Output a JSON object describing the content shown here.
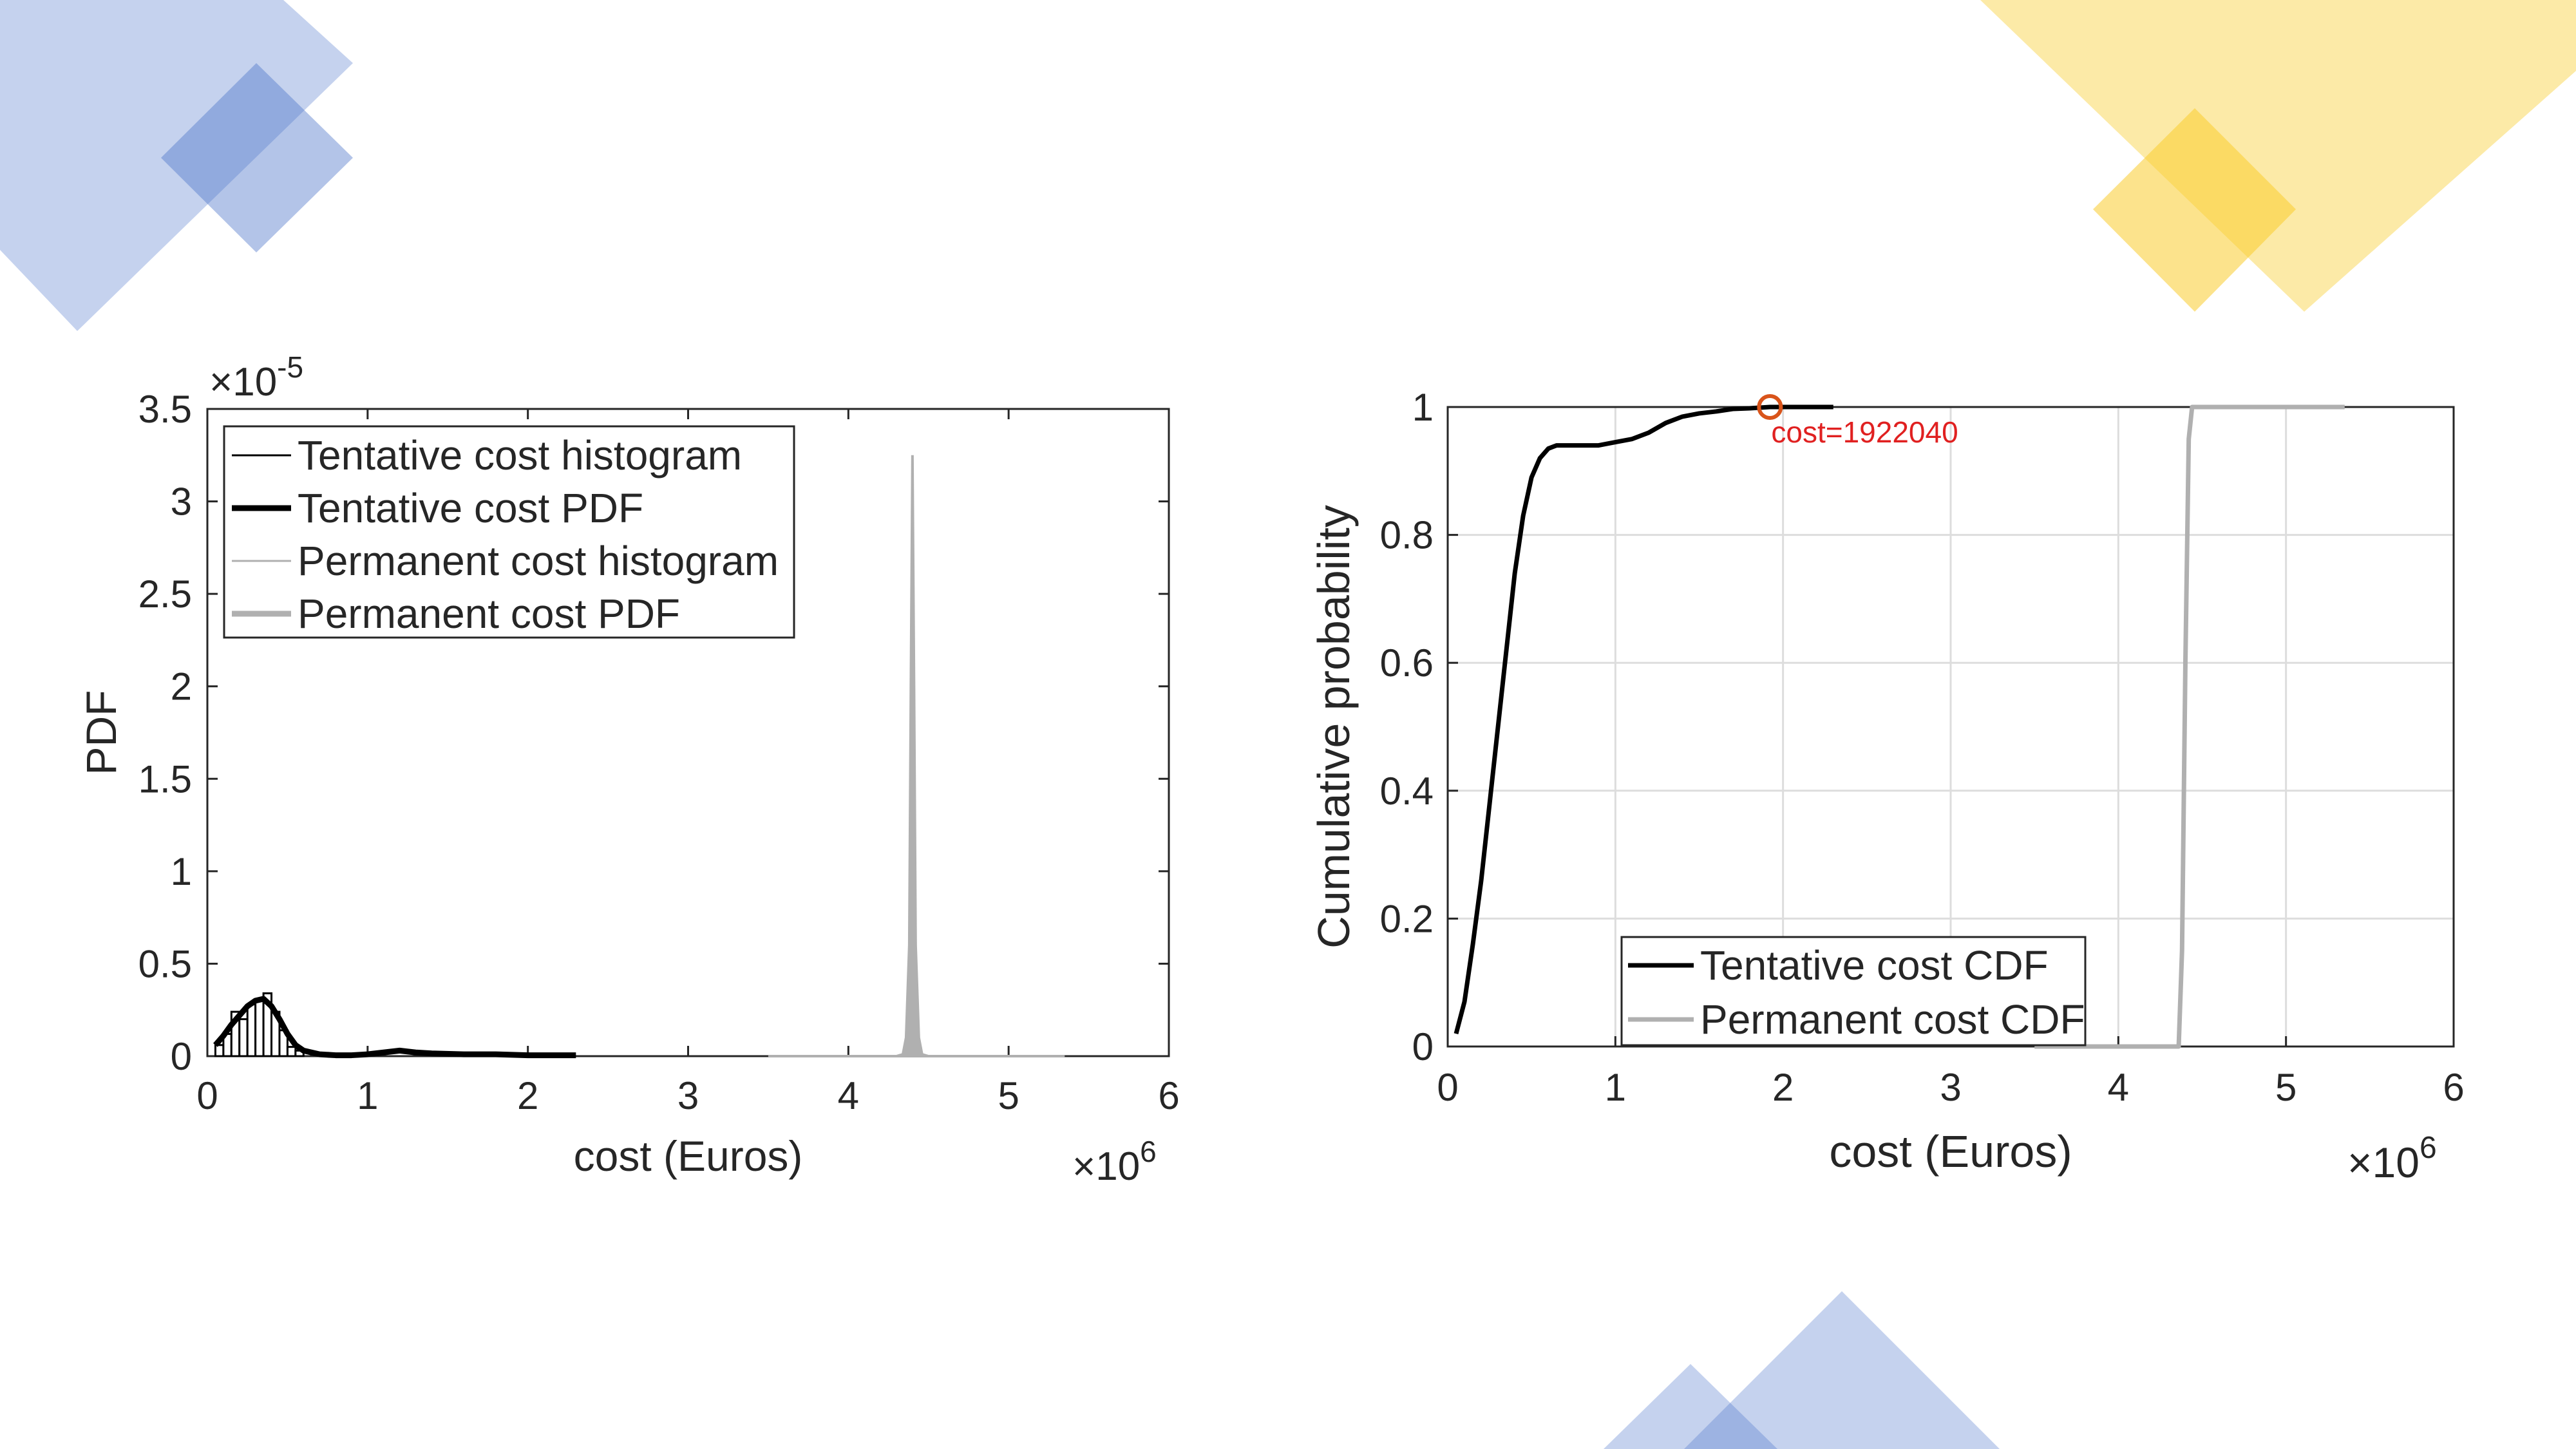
{
  "decor": {
    "blue": "#4a72c9",
    "yellow": "#f9cc2e"
  },
  "chart_data": [
    {
      "type": "line",
      "ylabel": "PDF",
      "xlabel": "cost (Euros)",
      "x_exponent_label": "×10",
      "x_exponent": "6",
      "y_exponent_label": "×10",
      "y_exponent": "-5",
      "xlim": [
        0,
        6
      ],
      "ylim": [
        0,
        3.5
      ],
      "xticks": [
        0,
        1,
        2,
        3,
        4,
        5,
        6
      ],
      "xtick_labels": [
        "0",
        "1",
        "2",
        "3",
        "4",
        "5",
        "6"
      ],
      "yticks": [
        0,
        0.5,
        1,
        1.5,
        2,
        2.5,
        3,
        3.5
      ],
      "ytick_labels": [
        "0",
        "0.5",
        "1",
        "1.5",
        "2",
        "2.5",
        "3",
        "3.5"
      ],
      "grid": false,
      "legend_position": "top-left",
      "legend": [
        {
          "label": "Tentative cost histogram",
          "color": "#000000",
          "style": "thin"
        },
        {
          "label": "Tentative cost PDF",
          "color": "#000000",
          "style": "thick"
        },
        {
          "label": "Permanent cost histogram",
          "color": "#b0b0b0",
          "style": "thin"
        },
        {
          "label": "Permanent cost PDF",
          "color": "#b0b0b0",
          "style": "thick"
        }
      ],
      "histogram_tentative": {
        "bin_edges": [
          0.05,
          0.1,
          0.15,
          0.2,
          0.25,
          0.3,
          0.35,
          0.4,
          0.45,
          0.5,
          0.55,
          0.6
        ],
        "values": [
          0.06,
          0.12,
          0.24,
          0.2,
          0.28,
          0.3,
          0.34,
          0.24,
          0.14,
          0.05,
          0.03
        ]
      },
      "series": [
        {
          "name": "Tentative cost PDF",
          "color": "#000000",
          "x": [
            0.05,
            0.1,
            0.15,
            0.2,
            0.25,
            0.3,
            0.35,
            0.4,
            0.45,
            0.5,
            0.55,
            0.6,
            0.7,
            0.8,
            0.9,
            1.0,
            1.1,
            1.2,
            1.3,
            1.4,
            1.6,
            1.8,
            2.0,
            2.3
          ],
          "y": [
            0.06,
            0.11,
            0.17,
            0.22,
            0.27,
            0.3,
            0.31,
            0.27,
            0.2,
            0.12,
            0.06,
            0.03,
            0.01,
            0.005,
            0.005,
            0.01,
            0.02,
            0.03,
            0.02,
            0.015,
            0.01,
            0.01,
            0.005,
            0.005
          ]
        },
        {
          "name": "Permanent cost PDF",
          "color": "#b0b0b0",
          "x": [
            3.5,
            4.3,
            4.34,
            4.36,
            4.38,
            4.39,
            4.4,
            4.41,
            4.42,
            4.44,
            4.46,
            4.5,
            5.35
          ],
          "y": [
            0,
            0,
            0.01,
            0.1,
            0.6,
            2.0,
            3.25,
            2.0,
            0.6,
            0.1,
            0.01,
            0,
            0
          ]
        }
      ]
    },
    {
      "type": "line",
      "ylabel": "Cumulative probability",
      "xlabel": "cost (Euros)",
      "x_exponent_label": "×10",
      "x_exponent": "6",
      "xlim": [
        0,
        6
      ],
      "ylim": [
        0,
        1
      ],
      "xticks": [
        0,
        1,
        2,
        3,
        4,
        5,
        6
      ],
      "xtick_labels": [
        "0",
        "1",
        "2",
        "3",
        "4",
        "5",
        "6"
      ],
      "yticks": [
        0,
        0.2,
        0.4,
        0.6,
        0.8,
        1
      ],
      "ytick_labels": [
        "0",
        "0.2",
        "0.4",
        "0.6",
        "0.8",
        "1"
      ],
      "grid": true,
      "legend_position": "bottom-center",
      "legend": [
        {
          "label": "Tentative cost CDF",
          "color": "#000000"
        },
        {
          "label": "Permanent cost CDF",
          "color": "#b0b0b0"
        }
      ],
      "annotation": {
        "label": "cost=1922040",
        "x": 1.92204,
        "y": 1.0,
        "color": "#e02020",
        "marker_color": "#d9541a"
      },
      "series": [
        {
          "name": "Tentative cost CDF",
          "color": "#000000",
          "x": [
            0.05,
            0.1,
            0.15,
            0.2,
            0.25,
            0.3,
            0.35,
            0.4,
            0.45,
            0.5,
            0.55,
            0.6,
            0.65,
            0.7,
            0.8,
            0.9,
            1.0,
            1.1,
            1.2,
            1.3,
            1.4,
            1.5,
            1.6,
            1.7,
            1.8,
            1.92204,
            2.1,
            2.3
          ],
          "y": [
            0.02,
            0.07,
            0.16,
            0.26,
            0.38,
            0.5,
            0.62,
            0.74,
            0.83,
            0.89,
            0.92,
            0.935,
            0.94,
            0.94,
            0.94,
            0.94,
            0.945,
            0.95,
            0.96,
            0.975,
            0.985,
            0.99,
            0.993,
            0.997,
            0.998,
            1.0,
            1.0,
            1.0
          ]
        },
        {
          "name": "Permanent cost CDF",
          "color": "#b0b0b0",
          "x": [
            3.5,
            4.36,
            4.38,
            4.4,
            4.42,
            4.44,
            5.35
          ],
          "y": [
            0,
            0,
            0.15,
            0.6,
            0.95,
            1.0,
            1.0
          ]
        }
      ]
    }
  ]
}
